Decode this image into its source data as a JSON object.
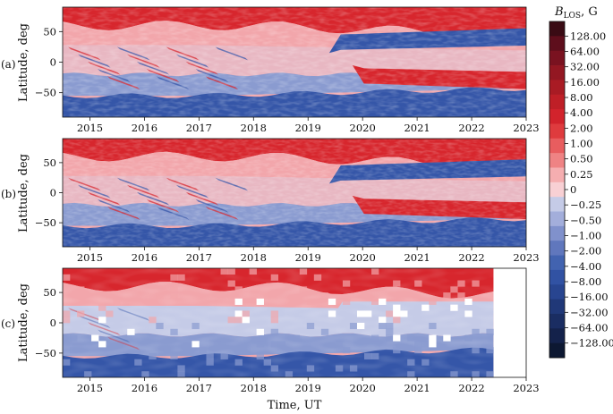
{
  "chart_data": [
    {
      "type": "heatmap",
      "panel": "(a)",
      "ylabel": "Latitude, deg",
      "xlabel": "",
      "xlim": [
        2014.5,
        2023.0
      ],
      "ylim": [
        -90,
        90
      ],
      "x_ticks": [
        "2015",
        "2016",
        "2017",
        "2018",
        "2019",
        "2020",
        "2021",
        "2022",
        "2023"
      ],
      "y_ticks": [
        "50",
        "0",
        "−50"
      ],
      "data_end_year": 2023.0,
      "patterns": {
        "north_cap": "red, widening after 2018",
        "south_cap": "blue, widening after 2017",
        "mid_north_after_2020": "blue band",
        "mid_south_after_2020": "red band",
        "equatorial_2015_2017": "mixed red/blue streaks"
      }
    },
    {
      "type": "heatmap",
      "panel": "(b)",
      "ylabel": "Latitude, deg",
      "xlabel": "",
      "xlim": [
        2014.5,
        2023.0
      ],
      "ylim": [
        -90,
        90
      ],
      "x_ticks": [
        "2015",
        "2016",
        "2017",
        "2018",
        "2019",
        "2020",
        "2021",
        "2022",
        "2023"
      ],
      "y_ticks": [
        "50",
        "0",
        "−50"
      ],
      "data_end_year": 2023.0,
      "patterns": {
        "north_cap": "red",
        "south_cap": "blue",
        "polarity_reversal": "after 2020"
      }
    },
    {
      "type": "heatmap",
      "panel": "(c)",
      "ylabel": "Latitude, deg",
      "xlabel": "Time, UT",
      "xlim": [
        2014.5,
        2023.0
      ],
      "ylim": [
        -90,
        90
      ],
      "x_ticks": [
        "2015",
        "2016",
        "2017",
        "2018",
        "2019",
        "2020",
        "2021",
        "2022",
        "2023"
      ],
      "y_ticks": [
        "50",
        "0",
        "−50"
      ],
      "data_end_year": 2022.4,
      "patterns": {
        "north_cap": "light red, low resolution",
        "south_cap": "blue, low resolution",
        "missing_cells": "white gaps"
      }
    }
  ],
  "colorbar": {
    "title_main": "B",
    "title_sub": "LOS",
    "title_unit": ", G",
    "labels": [
      "128.00",
      "64.00",
      "32.00",
      "16.00",
      "8.00",
      "4.00",
      "2.00",
      "1.00",
      "0.50",
      "0.25",
      "0",
      "−0.25",
      "−0.50",
      "−1.00",
      "−2.00",
      "−4.00",
      "−8.00",
      "−16.00",
      "−32.00",
      "−64.00",
      "−128.00"
    ],
    "colors": [
      "#3a0b14",
      "#5e0e1c",
      "#7a1220",
      "#931722",
      "#a91b24",
      "#bf1f27",
      "#d2232c",
      "#df3b3e",
      "#e85d5f",
      "#ef8384",
      "#f5aeb0",
      "#f8d0d4",
      "#c5cbe7",
      "#a3aedb",
      "#8091cc",
      "#6077bd",
      "#4263b0",
      "#3152a3",
      "#284590",
      "#203878",
      "#1a2d62",
      "#14224b",
      "#0d1832"
    ]
  },
  "colors": {
    "pos_strong": "#d7262d",
    "pos_light": "#f2a6ab",
    "neutral": "#c5cbe7",
    "neg_light": "#8a9bd0",
    "neg_strong": "#3556a8"
  }
}
